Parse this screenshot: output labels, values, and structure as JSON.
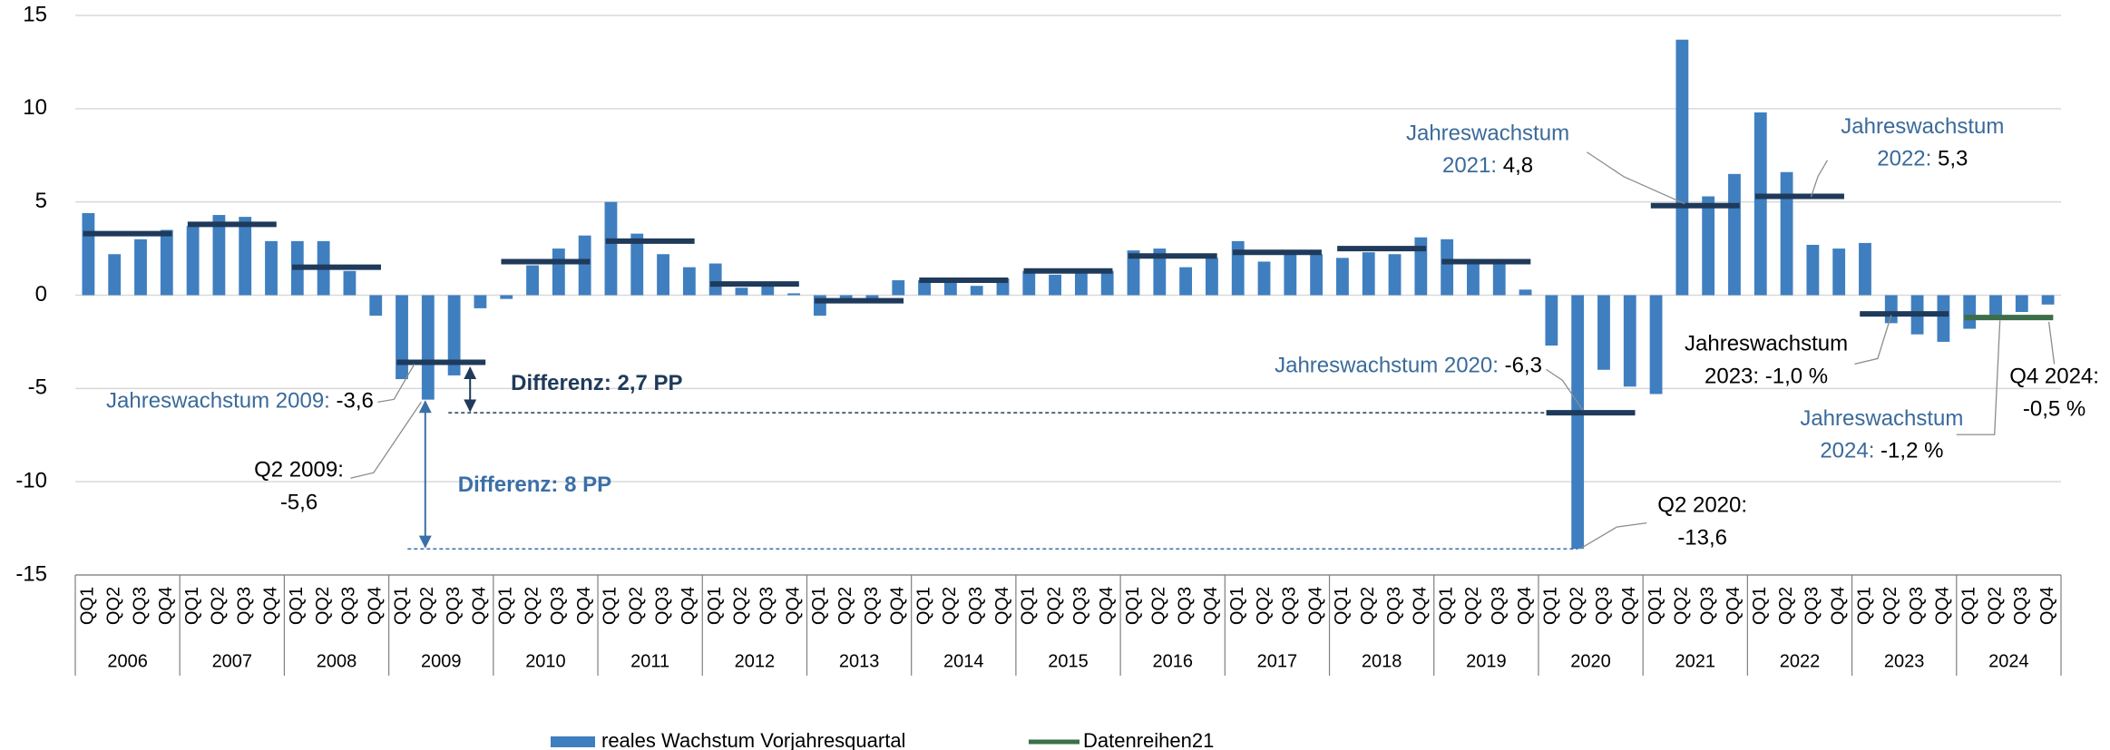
{
  "chart_data": {
    "type": "bar",
    "categories": [
      "QQ1",
      "QQ2",
      "QQ3",
      "QQ4",
      "QQ1",
      "QQ2",
      "QQ3",
      "QQ4",
      "QQ1",
      "QQ2",
      "QQ3",
      "QQ4",
      "QQ1",
      "QQ2",
      "QQ3",
      "QQ4",
      "QQ1",
      "QQ2",
      "QQ3",
      "QQ4",
      "QQ1",
      "QQ2",
      "QQ3",
      "QQ4",
      "QQ1",
      "QQ2",
      "QQ3",
      "QQ4",
      "QQ1",
      "QQ2",
      "QQ3",
      "QQ4",
      "QQ1",
      "QQ2",
      "QQ3",
      "QQ4",
      "QQ1",
      "QQ2",
      "QQ3",
      "QQ4",
      "QQ1",
      "QQ2",
      "QQ3",
      "QQ4",
      "QQ1",
      "QQ2",
      "QQ3",
      "QQ4",
      "QQ1",
      "QQ2",
      "QQ3",
      "QQ4",
      "QQ1",
      "QQ2",
      "QQ3",
      "QQ4",
      "QQ1",
      "QQ2",
      "QQ3",
      "QQ4",
      "QQ1",
      "QQ2",
      "QQ3",
      "QQ4",
      "QQ1",
      "QQ2",
      "QQ3",
      "QQ4",
      "QQ1",
      "QQ2",
      "QQ3",
      "QQ4",
      "QQ1",
      "QQ2",
      "QQ3",
      "QQ4"
    ],
    "years": [
      "2006",
      "2007",
      "2008",
      "2009",
      "2010",
      "2011",
      "2012",
      "2013",
      "2014",
      "2015",
      "2016",
      "2017",
      "2018",
      "2019",
      "2020",
      "2021",
      "2022",
      "2023",
      "2024"
    ],
    "series": [
      {
        "name": "reales Wachstum Vorjahresquartal",
        "color": "#3f7fc0",
        "values": [
          4.4,
          2.2,
          3.0,
          3.5,
          3.7,
          4.3,
          4.2,
          2.9,
          2.9,
          2.9,
          1.3,
          -1.1,
          -4.5,
          -5.6,
          -4.3,
          -0.7,
          -0.2,
          1.6,
          2.5,
          3.2,
          5.0,
          3.3,
          2.2,
          1.5,
          1.7,
          0.4,
          0.6,
          0.1,
          -1.1,
          -0.4,
          -0.3,
          0.8,
          0.8,
          0.8,
          0.5,
          0.9,
          1.3,
          1.1,
          1.2,
          1.3,
          2.4,
          2.5,
          1.5,
          2.0,
          2.9,
          1.8,
          2.2,
          2.2,
          2.0,
          2.3,
          2.2,
          3.1,
          3.0,
          1.7,
          1.9,
          0.3,
          -2.7,
          -13.6,
          -4.0,
          -4.9,
          -5.3,
          13.7,
          5.3,
          6.5,
          9.8,
          6.6,
          2.7,
          2.5,
          2.8,
          -1.5,
          -2.1,
          -2.5,
          -1.8,
          -1.3,
          -0.9,
          -0.5
        ]
      }
    ],
    "annual_series": [
      {
        "color": "#1f3a5a",
        "values": [
          3.3,
          3.8,
          1.5,
          -3.6,
          1.8,
          2.9,
          0.6,
          -0.3,
          0.8,
          1.3,
          2.1,
          2.3,
          2.5,
          1.8,
          -6.3,
          4.8,
          5.3,
          -1.0,
          null
        ]
      },
      {
        "name": "Datenreihen21",
        "color": "#3c6e4a",
        "values": [
          null,
          null,
          null,
          null,
          null,
          null,
          null,
          null,
          null,
          null,
          null,
          null,
          null,
          null,
          null,
          null,
          null,
          null,
          -1.2
        ]
      }
    ],
    "ylim": [
      -15,
      15
    ],
    "yticks": [
      -15,
      -10,
      -5,
      0,
      5,
      10,
      15
    ],
    "grid": true,
    "annotations": [
      {
        "lines": [
          [
            {
              "text": "Jahreswachstum 2009:",
              "color": "#3a6a9a"
            },
            {
              "text": " -3,6",
              "color": "#000000"
            }
          ]
        ]
      },
      {
        "lines": [
          [
            {
              "text": "Q2 2009:",
              "color": "#000000"
            }
          ],
          [
            {
              "text": "-5,6",
              "color": "#000000"
            }
          ]
        ]
      },
      {
        "lines": [
          [
            {
              "text": "Differenz: 2,7 PP",
              "color": "#1f3a5a"
            }
          ]
        ],
        "bold": true
      },
      {
        "lines": [
          [
            {
              "text": "Differenz: 8 PP",
              "color": "#3b6fa8"
            }
          ]
        ],
        "bold": true
      },
      {
        "lines": [
          [
            {
              "text": "Jahreswachstum 2020:",
              "color": "#3a6a9a"
            },
            {
              "text": " -6,3",
              "color": "#000000"
            }
          ]
        ]
      },
      {
        "lines": [
          [
            {
              "text": "Q2 2020:",
              "color": "#000000"
            }
          ],
          [
            {
              "text": "-13,6",
              "color": "#000000"
            }
          ]
        ]
      },
      {
        "lines": [
          [
            {
              "text": "Jahreswachstum",
              "color": "#3a6a9a"
            }
          ],
          [
            {
              "text": "2021:",
              "color": "#3a6a9a"
            },
            {
              "text": " 4,8",
              "color": "#000000"
            }
          ]
        ]
      },
      {
        "lines": [
          [
            {
              "text": "Jahreswachstum",
              "color": "#3a6a9a"
            }
          ],
          [
            {
              "text": "2022:",
              "color": "#3a6a9a"
            },
            {
              "text": " 5,3",
              "color": "#000000"
            }
          ]
        ]
      },
      {
        "lines": [
          [
            {
              "text": "Jahreswachstum",
              "color": "#000000"
            }
          ],
          [
            {
              "text": "2023: -1,0 %",
              "color": "#000000"
            }
          ]
        ]
      },
      {
        "lines": [
          [
            {
              "text": "Jahreswachstum",
              "color": "#3a6a9a"
            }
          ],
          [
            {
              "text": "2024:",
              "color": "#3a6a9a"
            },
            {
              "text": " -1,2 %",
              "color": "#000000"
            }
          ]
        ]
      },
      {
        "lines": [
          [
            {
              "text": "Q4 2024:",
              "color": "#000000"
            }
          ],
          [
            {
              "text": "-0,5 %",
              "color": "#000000"
            }
          ]
        ]
      }
    ]
  }
}
